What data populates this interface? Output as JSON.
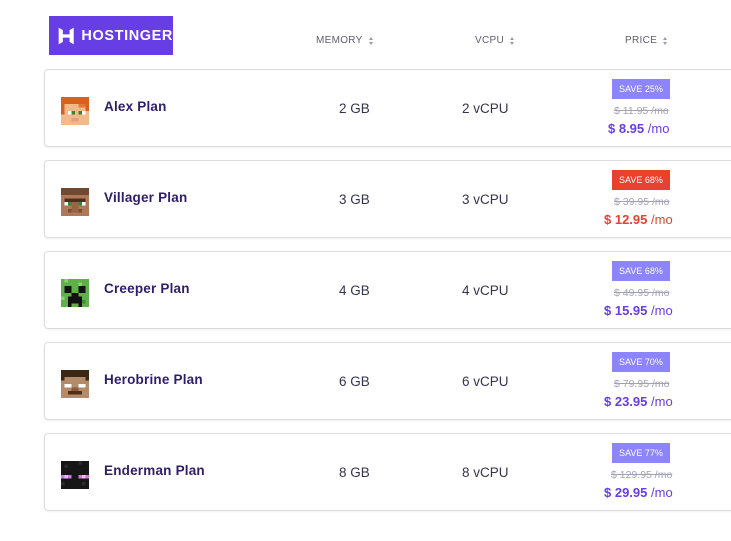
{
  "brand": {
    "logo_text": "HOSTINGER"
  },
  "columns": {
    "memory": "MEMORY",
    "vcpu": "VCPU",
    "price": "PRICE"
  },
  "plans": [
    {
      "name": "Alex Plan",
      "memory": "2 GB",
      "vcpu": "2 vCPU",
      "badge": "SAVE 25%",
      "old_price": "$ 11.95 /mo",
      "price": "$ 8.95",
      "per": "/mo",
      "avatar_icon": "alex-face-icon"
    },
    {
      "name": "Villager Plan",
      "memory": "3 GB",
      "vcpu": "3 vCPU",
      "badge": "SAVE 68%",
      "old_price": "$ 39.95 /mo",
      "price": "$ 12.95",
      "per": "/mo",
      "avatar_icon": "villager-face-icon",
      "highlight_color": "#e8412e"
    },
    {
      "name": "Creeper Plan",
      "memory": "4 GB",
      "vcpu": "4 vCPU",
      "badge": "SAVE 68%",
      "old_price": "$ 49.95 /mo",
      "price": "$ 15.95",
      "per": "/mo",
      "avatar_icon": "creeper-face-icon"
    },
    {
      "name": "Herobrine Plan",
      "memory": "6 GB",
      "vcpu": "6 vCPU",
      "badge": "SAVE 70%",
      "old_price": "$ 79.95 /mo",
      "price": "$ 23.95",
      "per": "/mo",
      "avatar_icon": "herobrine-face-icon"
    },
    {
      "name": "Enderman Plan",
      "memory": "8 GB",
      "vcpu": "8 vCPU",
      "badge": "SAVE 77%",
      "old_price": "$ 129.95 /mo",
      "price": "$ 29.95",
      "per": "/mo",
      "avatar_icon": "enderman-face-icon"
    }
  ],
  "colors": {
    "brand": "#673de6",
    "badge": "#8c85ff",
    "badge_highlight": "#e8412e",
    "price": "#673de6"
  }
}
